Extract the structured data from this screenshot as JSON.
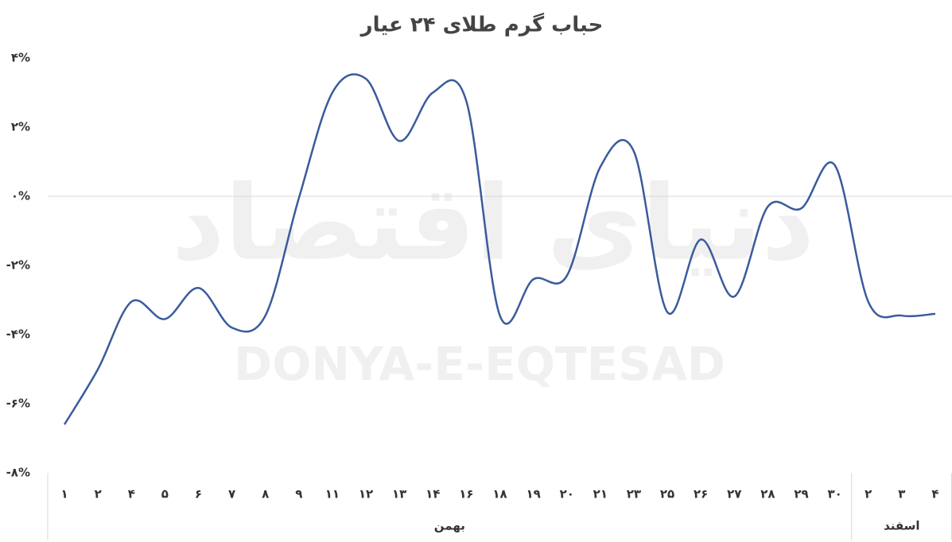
{
  "chart_data": {
    "type": "line",
    "title": "حباب گرم طلای ۲۴ عیار",
    "watermark": [
      "دنیای اقتصاد",
      "DONYA-E-EQTESAD"
    ],
    "categories": [
      "۱",
      "۲",
      "۴",
      "۵",
      "۶",
      "۷",
      "۸",
      "۹",
      "۱۱",
      "۱۲",
      "۱۳",
      "۱۴",
      "۱۶",
      "۱۸",
      "۱۹",
      "۲۰",
      "۲۱",
      "۲۳",
      "۲۵",
      "۲۶",
      "۲۷",
      "۲۸",
      "۲۹",
      "۳۰",
      "۲",
      "۳",
      "۴"
    ],
    "category_groups": [
      "بهمن",
      "بهمن",
      "بهمن",
      "بهمن",
      "بهمن",
      "بهمن",
      "بهمن",
      "بهمن",
      "بهمن",
      "بهمن",
      "بهمن",
      "بهمن",
      "بهمن",
      "بهمن",
      "بهمن",
      "بهمن",
      "بهمن",
      "بهمن",
      "بهمن",
      "بهمن",
      "بهمن",
      "بهمن",
      "بهمن",
      "بهمن",
      "اسفند",
      "اسفند",
      "اسفند"
    ],
    "series": [
      {
        "color": "#3a5b9c",
        "values": [
          -6.6,
          -5.0,
          -3.05,
          -3.55,
          -2.65,
          -3.8,
          -3.45,
          -0.05,
          3.0,
          3.4,
          1.6,
          3.0,
          2.75,
          -3.45,
          -2.4,
          -2.3,
          0.85,
          1.3,
          -3.35,
          -1.25,
          -2.9,
          -0.3,
          -0.35,
          0.9,
          -3.05,
          -3.45,
          -3.4
        ]
      }
    ],
    "ylim": [
      -8,
      4
    ],
    "yticks": [
      {
        "value": 4,
        "label": "۴%"
      },
      {
        "value": 2,
        "label": "۲%"
      },
      {
        "value": 0,
        "label": "۰%"
      },
      {
        "value": -2,
        "label": "-۲%"
      },
      {
        "value": -4,
        "label": "-۴%"
      },
      {
        "value": -6,
        "label": "-۶%"
      },
      {
        "value": -8,
        "label": "-۸%"
      }
    ],
    "zero_line": true
  }
}
